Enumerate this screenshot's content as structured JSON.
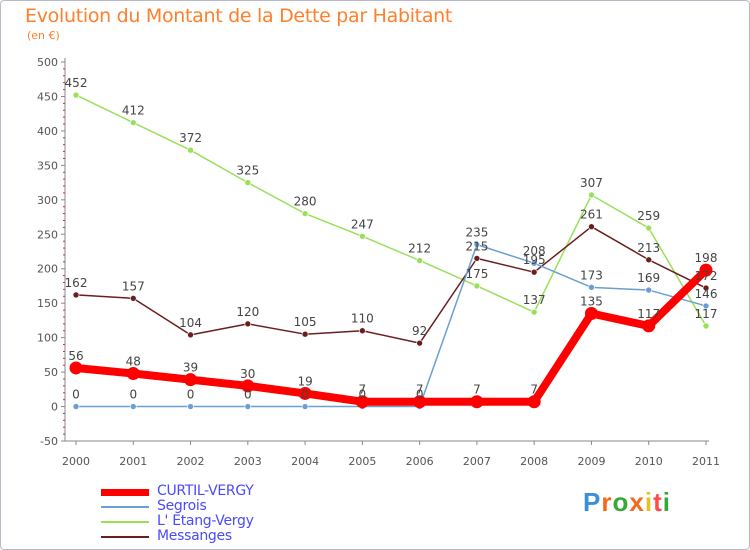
{
  "chart_data": {
    "type": "line",
    "title": "Evolution du Montant de la Dette par Habitant",
    "subtitle": "(en €)",
    "x": [
      2000,
      2001,
      2002,
      2003,
      2004,
      2005,
      2006,
      2007,
      2008,
      2009,
      2010,
      2011
    ],
    "ylim": [
      -50,
      500
    ],
    "yticks": [
      -50,
      0,
      50,
      100,
      150,
      200,
      250,
      300,
      350,
      400,
      450,
      500
    ],
    "grid": false,
    "legend_position": "bottom-left",
    "series": [
      {
        "name": "CURTIL-VERGY",
        "color": "#ff0000",
        "values": [
          56,
          48,
          39,
          30,
          19,
          7,
          7,
          7,
          7,
          135,
          117,
          198
        ]
      },
      {
        "name": "Segrois",
        "color": "#6a9fd4",
        "values": [
          0,
          0,
          0,
          0,
          0,
          0,
          0,
          235,
          208,
          173,
          169,
          146
        ]
      },
      {
        "name": "L' Etang-Vergy",
        "color": "#99e05a",
        "values": [
          452,
          412,
          372,
          325,
          280,
          247,
          212,
          175,
          137,
          307,
          259,
          117
        ]
      },
      {
        "name": "Messanges",
        "color": "#6b1e1e",
        "values": [
          162,
          157,
          104,
          120,
          105,
          110,
          92,
          215,
          195,
          261,
          213,
          172
        ]
      }
    ],
    "data_labels": [
      {
        "series": 2,
        "text": [
          "452",
          "412",
          "372",
          "325",
          "280",
          "247",
          "212",
          "175",
          "137",
          "307",
          "259",
          "117"
        ]
      },
      {
        "series": 3,
        "text": [
          "162",
          "157",
          "104",
          "120",
          "105",
          "110",
          "92",
          "215",
          "195",
          "261",
          "213",
          "172"
        ]
      },
      {
        "series": 1,
        "text": [
          "0",
          "0",
          "0",
          "0",
          "0",
          "0",
          "0",
          "235",
          "208",
          "173",
          "169",
          "146"
        ]
      },
      {
        "series": 0,
        "text": [
          "56",
          "48",
          "39",
          "30",
          "19",
          "7",
          "7",
          "7",
          "7",
          "135",
          "117",
          "198"
        ]
      }
    ]
  },
  "logo": {
    "text": [
      "P",
      "r",
      "o",
      "x",
      "i",
      "t",
      "i"
    ]
  }
}
